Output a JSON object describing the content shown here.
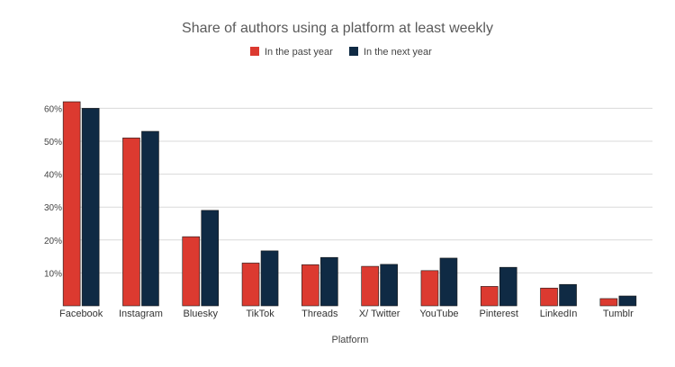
{
  "chart_data": {
    "type": "bar",
    "title": "Share of authors using a platform at least weekly",
    "xlabel": "Platform",
    "ylabel": "",
    "ylim": [
      0,
      0.65
    ],
    "yticks": [
      0.1,
      0.2,
      0.3,
      0.4,
      0.5,
      0.6
    ],
    "ytick_labels": [
      "10%",
      "20%",
      "30%",
      "40%",
      "50%",
      "60%"
    ],
    "grid": true,
    "legend_position": "top-center",
    "categories": [
      "Facebook",
      "Instagram",
      "Bluesky",
      "TikTok",
      "Threads",
      "X/ Twitter",
      "YouTube",
      "Pinterest",
      "LinkedIn",
      "Tumblr"
    ],
    "series": [
      {
        "name": "In the past year",
        "color": "#dc3a30",
        "values": [
          0.62,
          0.51,
          0.21,
          0.13,
          0.125,
          0.12,
          0.107,
          0.059,
          0.054,
          0.022
        ]
      },
      {
        "name": "In the next year",
        "color": "#0f2a44",
        "values": [
          0.6,
          0.53,
          0.29,
          0.167,
          0.147,
          0.126,
          0.145,
          0.117,
          0.065,
          0.03
        ]
      }
    ]
  }
}
